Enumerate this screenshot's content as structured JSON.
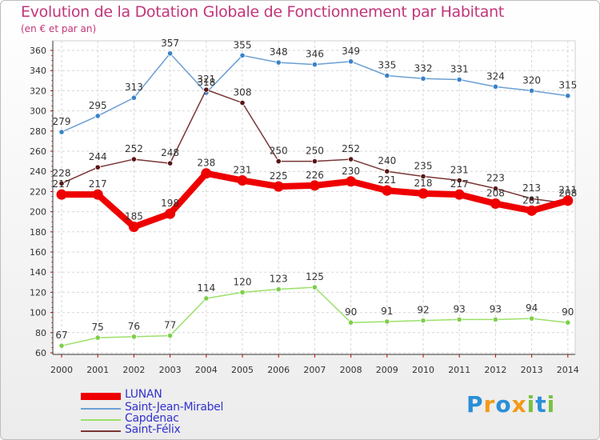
{
  "chart_data": {
    "type": "line",
    "title": "Evolution de la Dotation Globale de Fonctionnement par Habitant",
    "subtitle": "(en € et par an)",
    "xlabel": "",
    "ylabel": "",
    "x": [
      "2000",
      "2001",
      "2002",
      "2003",
      "2004",
      "2005",
      "2006",
      "2007",
      "2008",
      "2009",
      "2010",
      "2011",
      "2012",
      "2013",
      "2014"
    ],
    "ylim": [
      60,
      360
    ],
    "yticks": [
      60,
      80,
      100,
      120,
      140,
      160,
      180,
      200,
      220,
      240,
      260,
      280,
      300,
      320,
      340,
      360
    ],
    "grid": true,
    "legend_position": "bottom-left",
    "series": [
      {
        "name": "Saint-Jean-Mirabel",
        "color": "#6a9fd3",
        "dot": "#3a82c8",
        "values": [
          279,
          295,
          313,
          357,
          318,
          355,
          348,
          346,
          349,
          335,
          332,
          331,
          324,
          320,
          315
        ]
      },
      {
        "name": "Saint-Félix",
        "color": "#7a3535",
        "dot": "#5a1515",
        "values": [
          228,
          244,
          252,
          248,
          321,
          308,
          250,
          250,
          252,
          240,
          235,
          231,
          223,
          213,
          208
        ]
      },
      {
        "name": "Capdenac",
        "color": "#9be06a",
        "dot": "#7ccf4a",
        "values": [
          67,
          75,
          76,
          77,
          114,
          120,
          123,
          125,
          90,
          91,
          92,
          93,
          93,
          94,
          90
        ]
      },
      {
        "name": "LUNAN",
        "color": "#ee0000",
        "dot": "#ee0000",
        "thick": true,
        "values": [
          217,
          217,
          185,
          198,
          238,
          231,
          225,
          226,
          230,
          221,
          218,
          217,
          208,
          201,
          211
        ]
      }
    ]
  },
  "legend": [
    {
      "label": "LUNAN",
      "color": "#ee0000",
      "thick": true
    },
    {
      "label": "Saint-Jean-Mirabel",
      "color": "#6a9fd3",
      "thick": false
    },
    {
      "label": "Capdenac",
      "color": "#9be06a",
      "thick": false
    },
    {
      "label": "Saint-Félix",
      "color": "#7a3535",
      "thick": false
    }
  ],
  "brand": {
    "letters": [
      "P",
      "r",
      "o",
      "x",
      "i",
      "t",
      "i"
    ],
    "colors": [
      "#2a8fd8",
      "#f29a1a",
      "#2a8fd8",
      "#f29a1a",
      "#7bc043",
      "#2a8fd8",
      "#7bc043"
    ]
  }
}
